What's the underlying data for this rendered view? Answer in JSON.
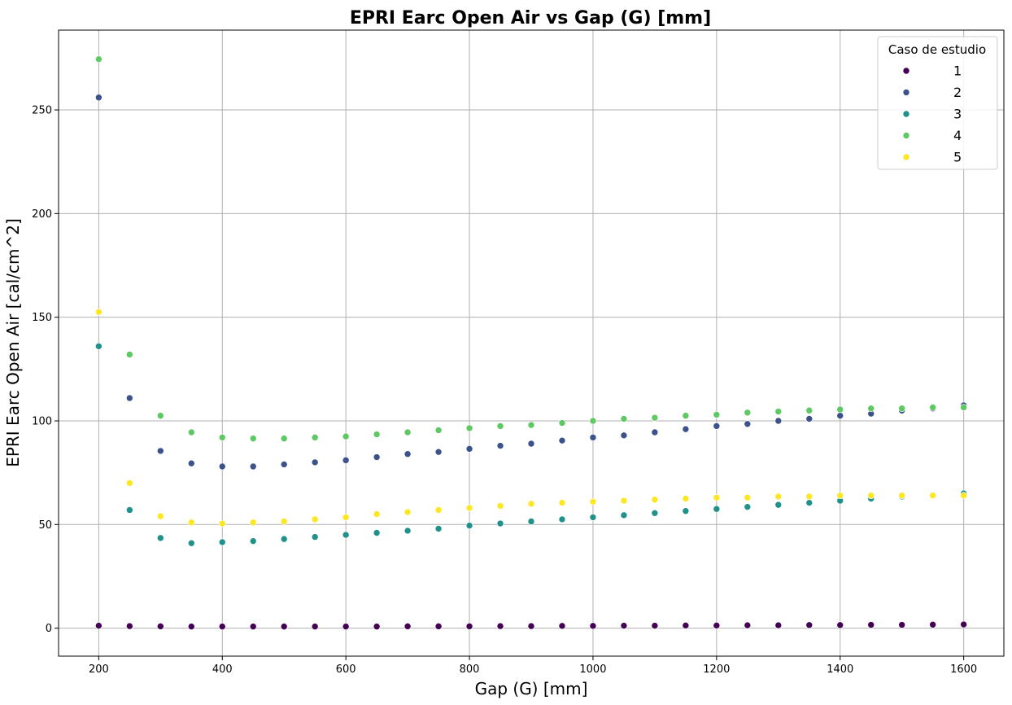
{
  "chart_data": {
    "type": "scatter",
    "title": "EPRI Earc Open Air vs Gap (G) [mm]",
    "xlabel": "Gap (G) [mm]",
    "ylabel": "EPRI Earc Open Air [cal/cm^2]",
    "xlim": [
      135,
      1665
    ],
    "ylim": [
      -13.5,
      288.5
    ],
    "xticks": [
      200,
      400,
      600,
      800,
      1000,
      1200,
      1400,
      1600
    ],
    "yticks": [
      0,
      50,
      100,
      150,
      200,
      250
    ],
    "grid": true,
    "legend": {
      "title": "Caso de estudio",
      "placement": "top-right"
    },
    "x": [
      200,
      250,
      300,
      350,
      400,
      450,
      500,
      550,
      600,
      650,
      700,
      750,
      800,
      850,
      900,
      950,
      1000,
      1050,
      1100,
      1150,
      1200,
      1250,
      1300,
      1350,
      1400,
      1450,
      1500,
      1550,
      1600
    ],
    "series": [
      {
        "name": "1",
        "color": "#440154",
        "values": [
          1.2,
          1.0,
          0.9,
          0.8,
          0.8,
          0.8,
          0.8,
          0.8,
          0.8,
          0.8,
          0.9,
          0.9,
          0.9,
          1.0,
          1.0,
          1.1,
          1.1,
          1.2,
          1.2,
          1.3,
          1.3,
          1.4,
          1.4,
          1.5,
          1.5,
          1.6,
          1.6,
          1.7,
          1.8
        ]
      },
      {
        "name": "2",
        "color": "#3b528b",
        "values": [
          256,
          111,
          85.5,
          79.5,
          78,
          78,
          79,
          80,
          81,
          82.5,
          84,
          85,
          86.5,
          88,
          89,
          90.5,
          92,
          93,
          94.5,
          96,
          97.5,
          98.5,
          100,
          101,
          102.5,
          103.5,
          105,
          106,
          107.5
        ]
      },
      {
        "name": "3",
        "color": "#21918c",
        "values": [
          136,
          57,
          43.5,
          41,
          41.5,
          42,
          43,
          44,
          45,
          46,
          47,
          48,
          49.5,
          50.5,
          51.5,
          52.5,
          53.5,
          54.5,
          55.5,
          56.5,
          57.5,
          58.5,
          59.5,
          60.5,
          61.5,
          62.5,
          63.5,
          64,
          65
        ]
      },
      {
        "name": "4",
        "color": "#5ec962",
        "values": [
          274.5,
          132,
          102.5,
          94.5,
          92,
          91.5,
          91.5,
          92,
          92.5,
          93.5,
          94.5,
          95.5,
          96.5,
          97.5,
          98,
          99,
          100,
          101,
          101.5,
          102.5,
          103,
          104,
          104.5,
          105,
          105.5,
          106,
          106,
          106.5,
          106.5
        ]
      },
      {
        "name": "5",
        "color": "#fde725",
        "values": [
          152.5,
          70,
          54,
          51,
          50.5,
          51,
          51.5,
          52.5,
          53.5,
          55,
          56,
          57,
          58,
          59,
          60,
          60.5,
          61,
          61.5,
          62,
          62.5,
          63,
          63,
          63.5,
          63.5,
          64,
          64,
          64,
          64,
          64
        ]
      }
    ]
  }
}
